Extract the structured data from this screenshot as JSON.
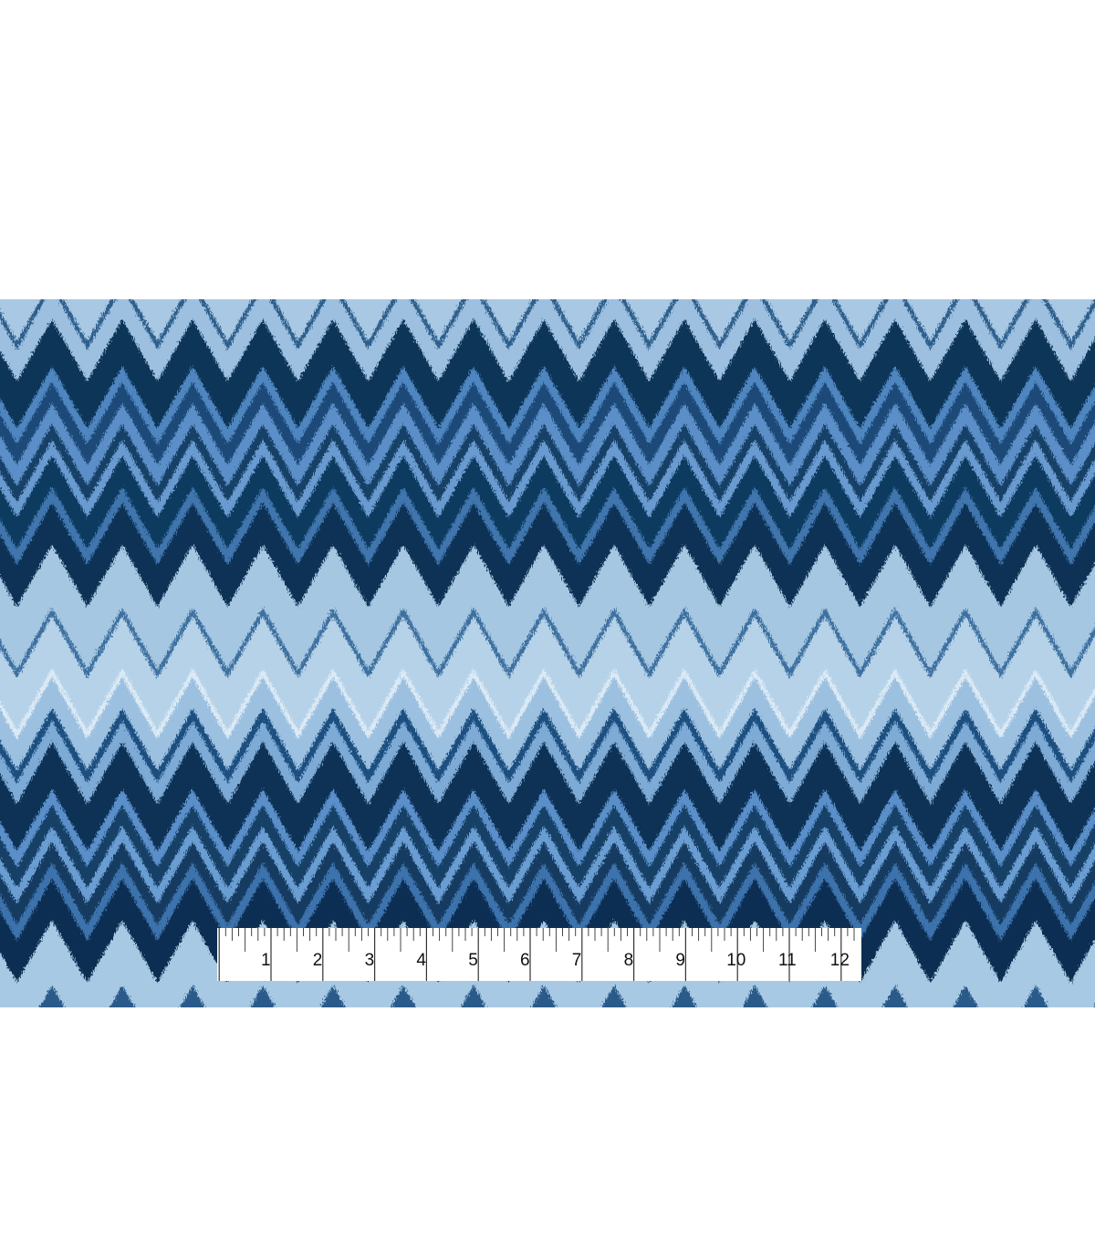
{
  "image": {
    "subject": "fabric-swatch",
    "background_color": "#ffffff",
    "fabric_palette": [
      "#a9c8e3",
      "#2d5f8c",
      "#9dc0e0",
      "#0d3558",
      "#4f86c0",
      "#1b4a78",
      "#5b8fc8",
      "#163f66",
      "#6a9bd0",
      "#0f3a5f",
      "#3f74ad",
      "#0c3154",
      "#a6c7e2",
      "#3c6f9f",
      "#b5d2e8",
      "#dceaf5",
      "#9cc0e0",
      "#1d507f",
      "#7eaad6",
      "#0c3255",
      "#5a8fca",
      "#173f66",
      "#6b9ed3",
      "#133b60",
      "#3e73ad",
      "#0b2f52",
      "#a8c9e3"
    ]
  },
  "ruler": {
    "unit": "inch",
    "labels": [
      "1",
      "2",
      "3",
      "4",
      "5",
      "6",
      "7",
      "8",
      "9",
      "10",
      "11",
      "12"
    ]
  }
}
